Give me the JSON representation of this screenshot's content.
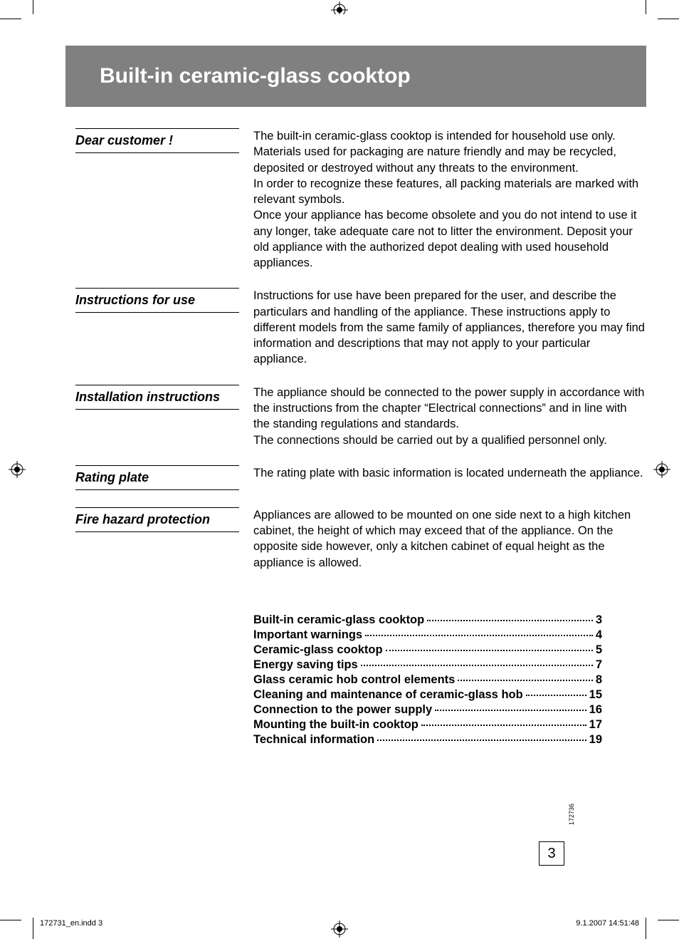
{
  "title": "Built-in ceramic-glass cooktop",
  "colors": {
    "title_bar_bg": "#808080",
    "title_bar_fg": "#ffffff",
    "text": "#000000",
    "page_bg": "#ffffff"
  },
  "sections": [
    {
      "heading": "Dear customer !",
      "body": "The built-in ceramic-glass cooktop is intended for household use only.\nMaterials used for packaging are nature friendly and may be recycled, deposited or destroyed without any threats to the environment.\nIn order to recognize these features, all packing materials are marked with relevant symbols.\nOnce your appliance has become obsolete and you do not intend to use it any longer, take adequate care not to litter the environment. Deposit your old appliance with the authorized depot dealing with used household appliances."
    },
    {
      "heading": "Instructions for use",
      "body": "Instructions for use have been prepared for the user, and describe the particulars and handling of the appliance. These instructions apply to different models from the same family of appliances, therefore you may find information and descriptions that may not apply to your particular appliance."
    },
    {
      "heading": "Installation instructions",
      "body": "The appliance should be connected to the power supply in accordance with the instructions from the chapter “Electrical connections” and in line with the standing regulations and standards.\nThe connections should be carried out by a qualified personnel only."
    },
    {
      "heading": "Rating plate",
      "body": "The rating plate with basic information is located underneath the appliance."
    },
    {
      "heading": "Fire hazard protection",
      "body": "Appliances are allowed to be mounted on one side next to a high kitchen cabinet, the height of which may exceed that of the appliance. On the opposite side however, only a kitchen cabinet of equal height as the appliance is allowed."
    }
  ],
  "toc": [
    {
      "title": "Built-in ceramic-glass cooktop",
      "page": "3"
    },
    {
      "title": "Important warnings",
      "page": "4"
    },
    {
      "title": "Ceramic-glass cooktop",
      "page": "5"
    },
    {
      "title": "Energy saving tips",
      "page": "7"
    },
    {
      "title": "Glass ceramic hob control elements",
      "page": "8"
    },
    {
      "title": "Cleaning and maintenance of ceramic-glass hob",
      "page": "15"
    },
    {
      "title": "Connection to the power supply",
      "page": "16"
    },
    {
      "title": "Mounting the built-in cooktop",
      "page": "17"
    },
    {
      "title": "Technical information",
      "page": "19"
    }
  ],
  "page_number": "3",
  "rot_code": "172736",
  "footer": {
    "left": "172731_en.indd   3",
    "right": "9.1.2007   14:51:48"
  }
}
